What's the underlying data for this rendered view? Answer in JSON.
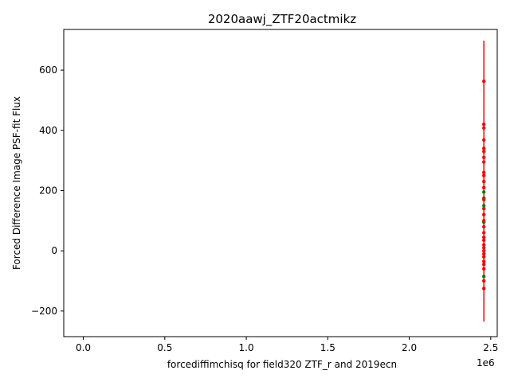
{
  "chart_data": {
    "type": "scatter",
    "title": "2020aawj_ZTF20actmikz",
    "xlabel": "forcediffimchisq for field320 ZTF_r and 2019ecn",
    "ylabel": "Forced Difference Image PSF-fit Flux",
    "x_offset_label": "1e6",
    "xlim": [
      -0.12,
      2.54
    ],
    "ylim": [
      -285,
      735
    ],
    "x_ticks": [
      0.0,
      0.5,
      1.0,
      1.5,
      2.0,
      2.5
    ],
    "x_tick_labels": [
      "0.0",
      "0.5",
      "1.0",
      "1.5",
      "2.0",
      "2.5"
    ],
    "y_ticks": [
      -200,
      0,
      200,
      400,
      600
    ],
    "y_tick_labels": [
      "−200",
      "0",
      "200",
      "400",
      "600"
    ],
    "grid": false,
    "colors": {
      "red": "#ff0000",
      "green": "#008000"
    },
    "series": [
      {
        "color": "red",
        "x": [
          2.458,
          2.458,
          2.458,
          2.458,
          2.458,
          2.458,
          2.458,
          2.458,
          2.458,
          2.458,
          2.458,
          2.458,
          2.458,
          2.458,
          2.458,
          2.458,
          2.458,
          2.458,
          2.458,
          2.458,
          2.458,
          2.458,
          2.458,
          2.458,
          2.458,
          2.458,
          2.458,
          2.458,
          2.458,
          2.458
        ],
        "y": [
          563,
          420,
          408,
          368,
          340,
          330,
          310,
          295,
          260,
          250,
          230,
          210,
          170,
          140,
          120,
          100,
          80,
          60,
          45,
          35,
          20,
          10,
          0,
          -10,
          -20,
          -35,
          -45,
          -60,
          -100,
          -125
        ],
        "yerr_low": [
          -235
        ],
        "yerr_high": [
          698
        ]
      },
      {
        "color": "green",
        "x": [
          2.458,
          2.458,
          2.458,
          2.458,
          2.458
        ],
        "y": [
          195,
          175,
          150,
          95,
          -85
        ]
      }
    ],
    "error_bar": {
      "x": 2.458,
      "y_min": -235,
      "y_max": 698
    }
  }
}
